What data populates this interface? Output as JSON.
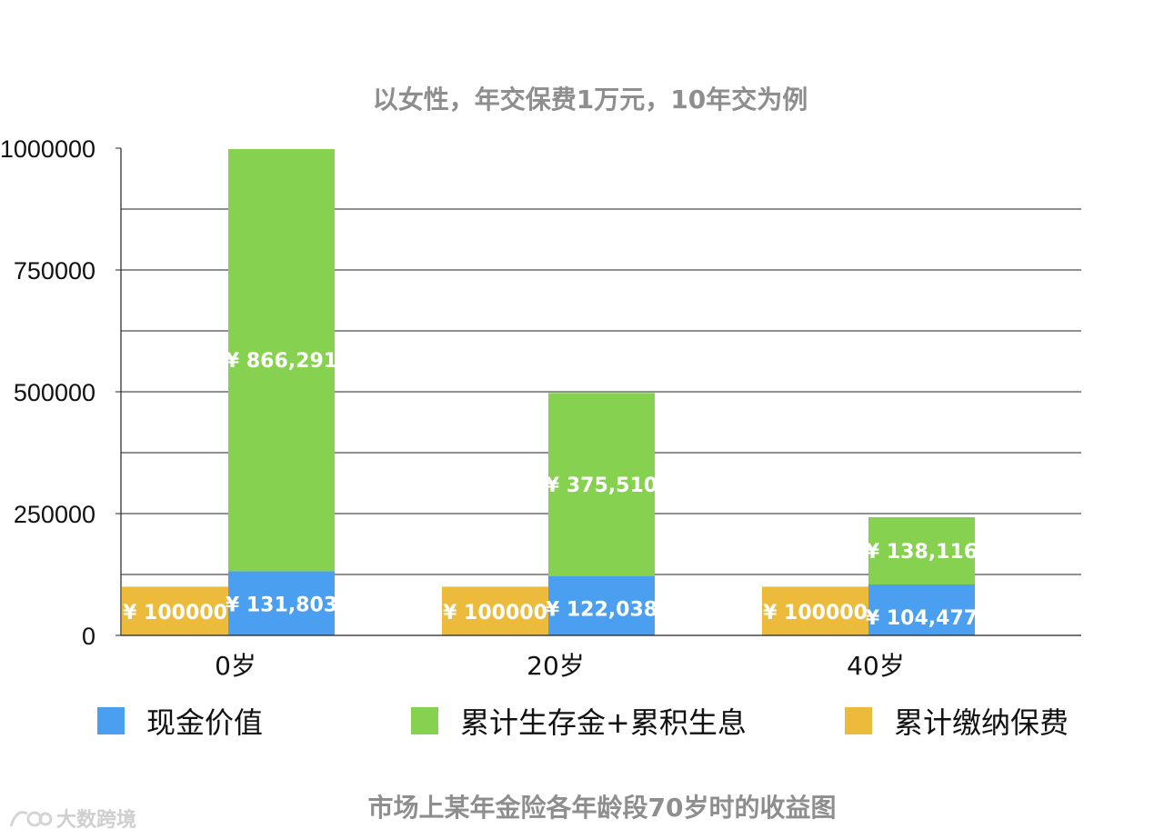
{
  "chart_data": {
    "type": "bar",
    "stacked": true,
    "title": "以女性，年交保费1万元，10年交为例",
    "caption": "市场上某年金险各年龄段70岁时的收益图",
    "categories": [
      "0岁",
      "20岁",
      "40岁"
    ],
    "ylim": [
      0,
      1000000
    ],
    "y_ticks": [
      0,
      250000,
      500000,
      750000,
      1000000
    ],
    "y_tick_labels": [
      "0",
      "250000",
      "500000",
      "750000",
      "1000000"
    ],
    "grid": true,
    "legend_position": "bottom",
    "series": [
      {
        "name": "现金价值",
        "color": "#4a9ff0",
        "values": [
          131803,
          122038,
          104477
        ],
        "labels": [
          "¥ 131,803",
          "¥ 122,038",
          "¥ 104,477"
        ]
      },
      {
        "name": "累计生存金+累积生息",
        "color": "#86d150",
        "values": [
          866291,
          375510,
          138116
        ],
        "labels": [
          "¥ 866,291",
          "¥ 375,510",
          "¥ 138,116"
        ]
      },
      {
        "name": "累计缴纳保费",
        "color": "#ecbb3b",
        "values": [
          100000,
          100000,
          100000
        ],
        "labels": [
          "¥ 100000",
          "¥ 100000",
          "¥ 100000"
        ]
      }
    ]
  },
  "watermark": {
    "text": "大数跨境"
  }
}
